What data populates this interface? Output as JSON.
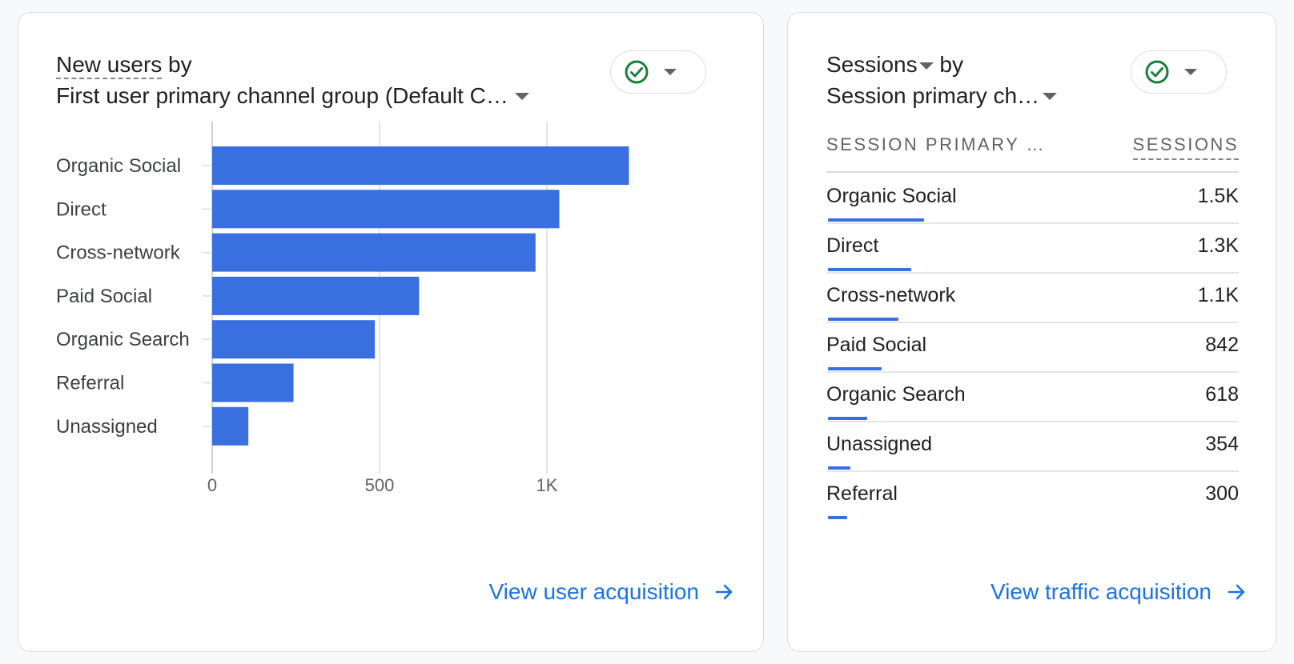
{
  "left_card": {
    "title_metric": "New users",
    "title_by": "by",
    "title_dimension": "First user primary channel group (Default C…",
    "footer_link": "View user acquisition",
    "chart_data": {
      "type": "bar",
      "orientation": "horizontal",
      "title": "New users by First user primary channel group (Default Channel Group)",
      "categories": [
        "Organic Social",
        "Direct",
        "Cross-network",
        "Paid Social",
        "Organic Search",
        "Referral",
        "Unassigned"
      ],
      "values": [
        1245,
        1037,
        966,
        618,
        486,
        243,
        108
      ],
      "xlim": [
        0,
        1500
      ],
      "xticks": [
        0,
        500,
        1000
      ],
      "xtick_labels": [
        "0",
        "500",
        "1K"
      ],
      "grid": true,
      "color": "#3a6fdf"
    }
  },
  "right_card": {
    "title_metric": "Sessions",
    "title_by": "by",
    "title_dimension": "Session primary ch…",
    "col_dimension": "SESSION PRIMARY …",
    "col_metric": "SESSIONS",
    "footer_link": "View traffic acquisition",
    "max_value": 1500,
    "rows": [
      {
        "label": "Organic Social",
        "value": "1.5K",
        "amount": 1500
      },
      {
        "label": "Direct",
        "value": "1.3K",
        "amount": 1300
      },
      {
        "label": "Cross-network",
        "value": "1.1K",
        "amount": 1100
      },
      {
        "label": "Paid Social",
        "value": "842",
        "amount": 842
      },
      {
        "label": "Organic Search",
        "value": "618",
        "amount": 618
      },
      {
        "label": "Unassigned",
        "value": "354",
        "amount": 354
      },
      {
        "label": "Referral",
        "value": "300",
        "amount": 300
      }
    ]
  },
  "colors": {
    "accent": "#1a73e8",
    "bar": "#3a6fdf",
    "check": "#188038"
  },
  "icons": {
    "status": "check-circle-icon",
    "arrow": "arrow-right-icon"
  }
}
